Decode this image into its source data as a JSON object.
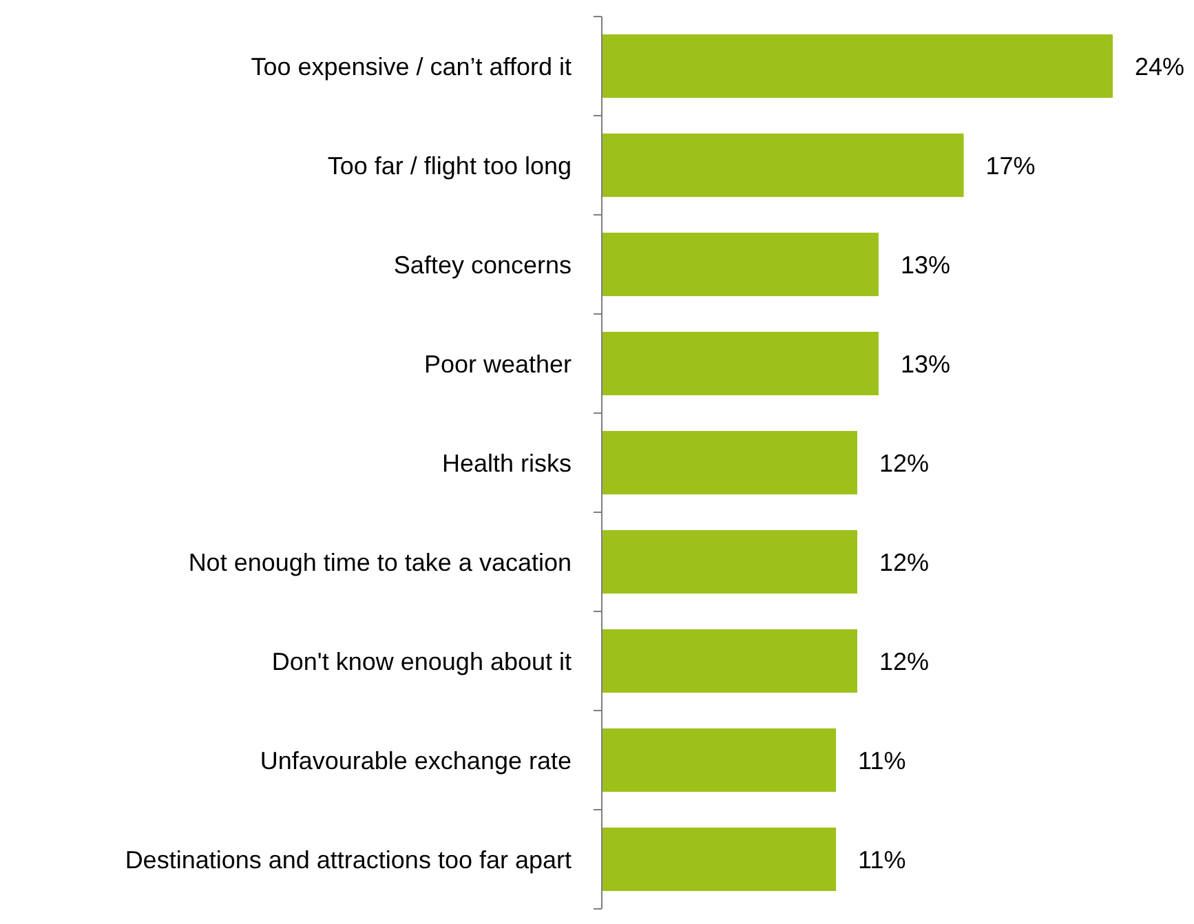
{
  "chart_data": {
    "type": "bar",
    "orientation": "horizontal",
    "categories": [
      "Too expensive / can’t afford it",
      "Too far / flight too long",
      "Saftey concerns",
      "Poor weather",
      "Health risks",
      "Not enough time to take a vacation",
      "Don't know enough about it",
      "Unfavourable exchange rate",
      "Destinations and attractions too far apart"
    ],
    "values": [
      24,
      17,
      13,
      13,
      12,
      12,
      12,
      11,
      11
    ],
    "value_labels": [
      "24%",
      "17%",
      "13%",
      "13%",
      "12%",
      "12%",
      "12%",
      "11%",
      "11%"
    ],
    "color": "#9dc11a"
  }
}
